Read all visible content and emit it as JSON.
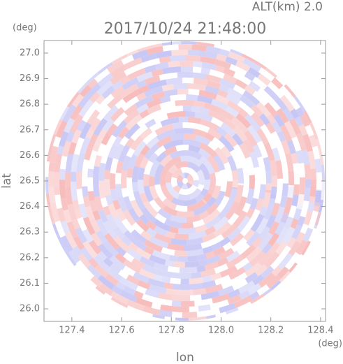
{
  "chart_data": {
    "type": "radar",
    "title": "2017/10/24 21:48:00",
    "subtitle": "ALT(km) 2.0",
    "x_label": "lon",
    "y_label": "lat",
    "x_unit": "(deg)",
    "y_unit": "(deg)",
    "xlim": [
      127.288,
      128.42
    ],
    "ylim": [
      25.951,
      27.049
    ],
    "xticks": [
      127.4,
      127.6,
      127.8,
      {
        "value": 128.0,
        "label": "128.0"
      },
      128.2,
      128.4
    ],
    "yticks": [
      {
        "value": 26.0,
        "label": "26.0"
      },
      26.1,
      26.2,
      26.3,
      26.4,
      26.5,
      26.6,
      26.7,
      26.8,
      26.9,
      {
        "value": 27.0,
        "label": "27.0"
      }
    ]
  }
}
